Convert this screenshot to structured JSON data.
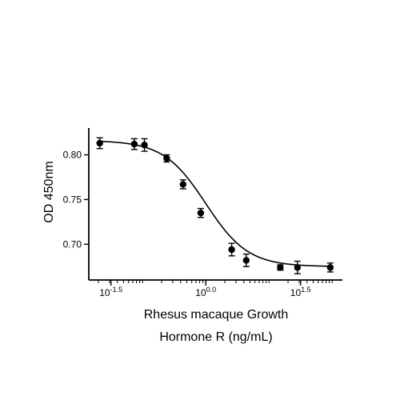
{
  "chart_data": {
    "type": "scatter",
    "xlabel_lines": [
      "Rhesus macaque Growth",
      "Hormone R (ng/mL)"
    ],
    "ylabel": "OD 450nm",
    "x_scale": "log10",
    "xlim": [
      0.0141,
      145
    ],
    "ylim": [
      0.66,
      0.83
    ],
    "x_ticks": [
      {
        "value": 0.0316,
        "base": "10",
        "exp": "-1.5"
      },
      {
        "value": 1.0,
        "base": "10",
        "exp": "0.0"
      },
      {
        "value": 31.6,
        "base": "10",
        "exp": "1.5"
      }
    ],
    "y_ticks": [
      {
        "value": 0.7,
        "label": "0.70"
      },
      {
        "value": 0.75,
        "label": "0.75"
      },
      {
        "value": 0.8,
        "label": "0.80"
      }
    ],
    "points": [
      {
        "x": 0.021,
        "y": 0.813,
        "err": 0.006
      },
      {
        "x": 0.074,
        "y": 0.812,
        "err": 0.006
      },
      {
        "x": 0.107,
        "y": 0.811,
        "err": 0.007
      },
      {
        "x": 0.241,
        "y": 0.796,
        "err": 0.004
      },
      {
        "x": 0.437,
        "y": 0.767,
        "err": 0.005
      },
      {
        "x": 0.832,
        "y": 0.735,
        "err": 0.005
      },
      {
        "x": 2.57,
        "y": 0.694,
        "err": 0.007
      },
      {
        "x": 4.37,
        "y": 0.682,
        "err": 0.007
      },
      {
        "x": 15.1,
        "y": 0.674,
        "err": 0.003
      },
      {
        "x": 28.2,
        "y": 0.674,
        "err": 0.007
      },
      {
        "x": 93.3,
        "y": 0.674,
        "err": 0.005
      }
    ],
    "fit": {
      "model": "4PL",
      "top": 0.816,
      "bottom": 0.675,
      "ec50": 1.0,
      "hill": 1.3
    },
    "grid": false,
    "legend": "none"
  }
}
